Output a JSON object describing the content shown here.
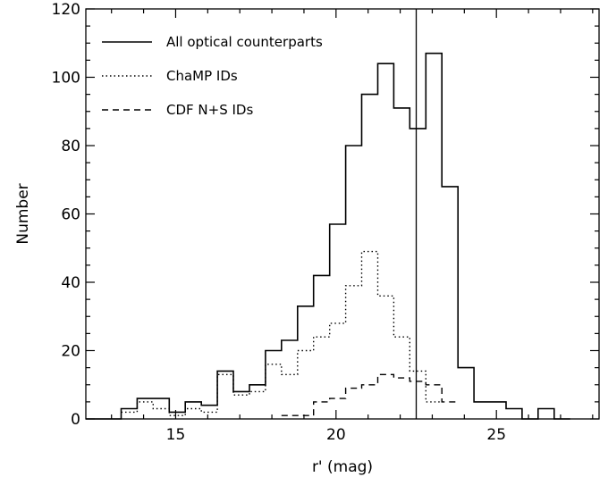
{
  "chart_data": {
    "type": "histogram",
    "xlabel": "r' (mag)",
    "ylabel": "Number",
    "xlim": [
      12.2,
      28.2
    ],
    "ylim": [
      0,
      120
    ],
    "x_ticks": [
      15,
      20,
      25
    ],
    "y_ticks": [
      0,
      20,
      40,
      60,
      80,
      100,
      120
    ],
    "grid": false,
    "legend_position": "top-left",
    "bin_width": 0.5,
    "vertical_line": 22.5,
    "series": [
      {
        "name": "All optical counterparts",
        "style": "solid",
        "bin_edges": [
          12.2,
          13.3,
          13.8,
          14.3,
          14.8,
          15.3,
          15.8,
          16.3,
          16.8,
          17.3,
          17.8,
          18.3,
          18.8,
          19.3,
          19.8,
          20.3,
          20.8,
          21.3,
          21.8,
          22.3,
          22.8,
          23.3,
          23.8,
          24.3,
          24.8,
          25.3,
          25.8,
          26.3,
          26.8,
          27.3
        ],
        "counts": [
          0,
          3,
          6,
          6,
          2,
          5,
          4,
          14,
          8,
          10,
          20,
          23,
          33,
          42,
          57,
          80,
          95,
          104,
          91,
          85,
          107,
          68,
          15,
          5,
          5,
          3,
          0,
          3,
          0
        ]
      },
      {
        "name": "ChaMP IDs",
        "style": "dotted",
        "bin_edges": [
          13.3,
          13.8,
          14.3,
          14.8,
          15.3,
          15.8,
          16.3,
          16.8,
          17.3,
          17.8,
          18.3,
          18.8,
          19.3,
          19.8,
          20.3,
          20.8,
          21.3,
          21.8,
          22.3,
          22.8,
          23.3
        ],
        "counts": [
          2,
          5,
          3,
          1,
          3,
          2,
          13,
          7,
          8,
          16,
          13,
          20,
          24,
          28,
          39,
          49,
          36,
          24,
          14,
          5
        ]
      },
      {
        "name": "CDF N+S IDs",
        "style": "dashed",
        "bin_edges": [
          18.3,
          18.8,
          19.3,
          19.8,
          20.3,
          20.8,
          21.3,
          21.8,
          22.3,
          22.8,
          23.3,
          23.8
        ],
        "counts": [
          1,
          1,
          5,
          6,
          9,
          10,
          13,
          12,
          11,
          10,
          5
        ]
      }
    ]
  }
}
